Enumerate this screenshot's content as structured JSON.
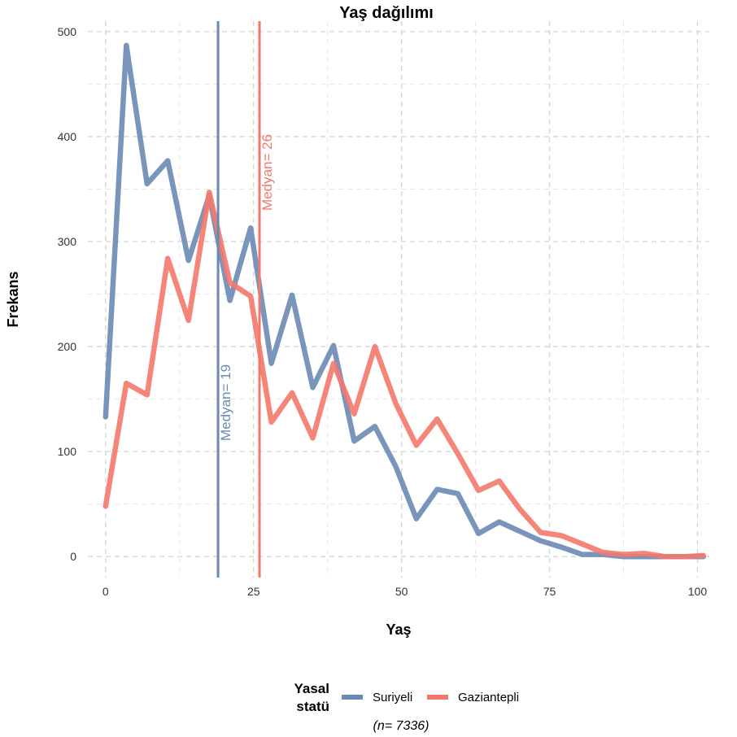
{
  "chart_data": {
    "type": "line",
    "title": "Yaş dağılımı",
    "xlabel": "Yaş",
    "ylabel": "Frekans",
    "xlim": [
      -3,
      102
    ],
    "ylim": [
      -20,
      510
    ],
    "x_ticks": [
      0,
      25,
      50,
      75,
      100
    ],
    "y_ticks": [
      0,
      100,
      200,
      300,
      400,
      500
    ],
    "grid": true,
    "legend": {
      "title_lines": [
        "Yasal",
        "statü"
      ],
      "position": "bottom"
    },
    "series": [
      {
        "name": "Suriyeli",
        "color": "#6a89b5",
        "x": [
          0,
          3.5,
          7,
          10.5,
          14,
          17.5,
          21,
          24.5,
          28,
          31.5,
          35,
          38.5,
          42,
          45.5,
          49,
          52.5,
          56,
          59.5,
          63,
          66.5,
          70,
          73.5,
          77,
          80.5,
          84,
          87.5,
          91,
          94.5,
          98,
          101
        ],
        "values": [
          133,
          487,
          355,
          377,
          282,
          344,
          244,
          313,
          184,
          249,
          161,
          201,
          110,
          124,
          86,
          36,
          64,
          60,
          22,
          33,
          24,
          15,
          9,
          2,
          2,
          0,
          0,
          0,
          0,
          0
        ]
      },
      {
        "name": "Gaziantepli",
        "color": "#f4786a",
        "x": [
          0,
          3.5,
          7,
          10.5,
          14,
          17.5,
          21,
          24.5,
          28,
          31.5,
          35,
          38.5,
          42,
          45.5,
          49,
          52.5,
          56,
          59.5,
          63,
          66.5,
          70,
          73.5,
          77,
          80.5,
          84,
          87.5,
          91,
          94.5,
          98,
          101
        ],
        "values": [
          48,
          165,
          154,
          284,
          225,
          347,
          261,
          248,
          128,
          156,
          113,
          184,
          136,
          200,
          146,
          106,
          131,
          98,
          63,
          72,
          45,
          23,
          20,
          12,
          4,
          2,
          3,
          0,
          0,
          1
        ]
      }
    ],
    "medians": [
      {
        "series": "Suriyeli",
        "value": 19,
        "label": "Medyan= 19",
        "color": "#6a89b5"
      },
      {
        "series": "Gaziantepli",
        "value": 26,
        "label": "Medyan= 26",
        "color": "#f4786a"
      }
    ],
    "note": "(n= 7336)"
  }
}
